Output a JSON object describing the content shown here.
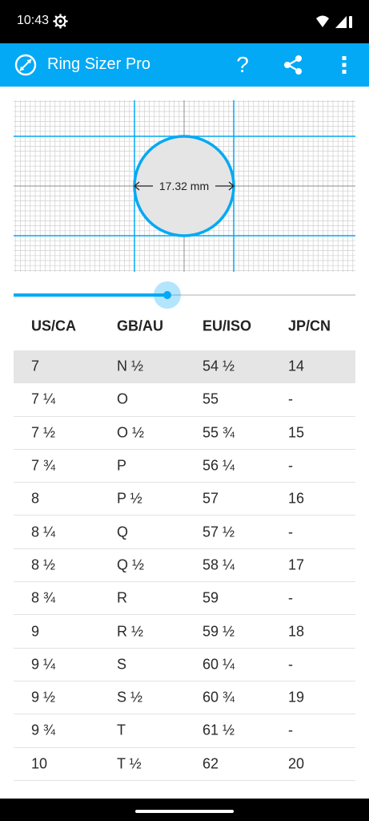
{
  "status_bar": {
    "time": "10:43",
    "icons": [
      "settings-gear-icon",
      "wifi-icon",
      "cellular-signal-icon"
    ]
  },
  "app_bar": {
    "title": "Ring Sizer Pro",
    "background_color": "#03a9f4",
    "actions": [
      "help-icon",
      "share-icon",
      "more-vert-icon"
    ],
    "help_glyph": "?"
  },
  "measurement": {
    "diameter_label": "17.32 mm",
    "circle_stroke_color": "#03a9f4",
    "circle_fill_color": "#e5e5e5"
  },
  "slider": {
    "value_fraction": 0.45
  },
  "size_table": {
    "headers": [
      "US/CA",
      "GB/AU",
      "EU/ISO",
      "JP/CN"
    ],
    "selected_row_index": 0,
    "rows": [
      [
        "7",
        "N ½",
        "54 ½",
        "14"
      ],
      [
        "7 ¼",
        "O",
        "55",
        "-"
      ],
      [
        "7 ½",
        "O ½",
        "55 ¾",
        "15"
      ],
      [
        "7 ¾",
        "P",
        "56 ¼",
        "-"
      ],
      [
        "8",
        "P ½",
        "57",
        "16"
      ],
      [
        "8 ¼",
        "Q",
        "57 ½",
        "-"
      ],
      [
        "8 ½",
        "Q ½",
        "58 ¼",
        "17"
      ],
      [
        "8 ¾",
        "R",
        "59",
        "-"
      ],
      [
        "9",
        "R ½",
        "59 ½",
        "18"
      ],
      [
        "9 ¼",
        "S",
        "60 ¼",
        "-"
      ],
      [
        "9 ½",
        "S ½",
        "60 ¾",
        "19"
      ],
      [
        "9 ¾",
        "T",
        "61 ½",
        "-"
      ],
      [
        "10",
        "T ½",
        "62",
        "20"
      ]
    ]
  }
}
